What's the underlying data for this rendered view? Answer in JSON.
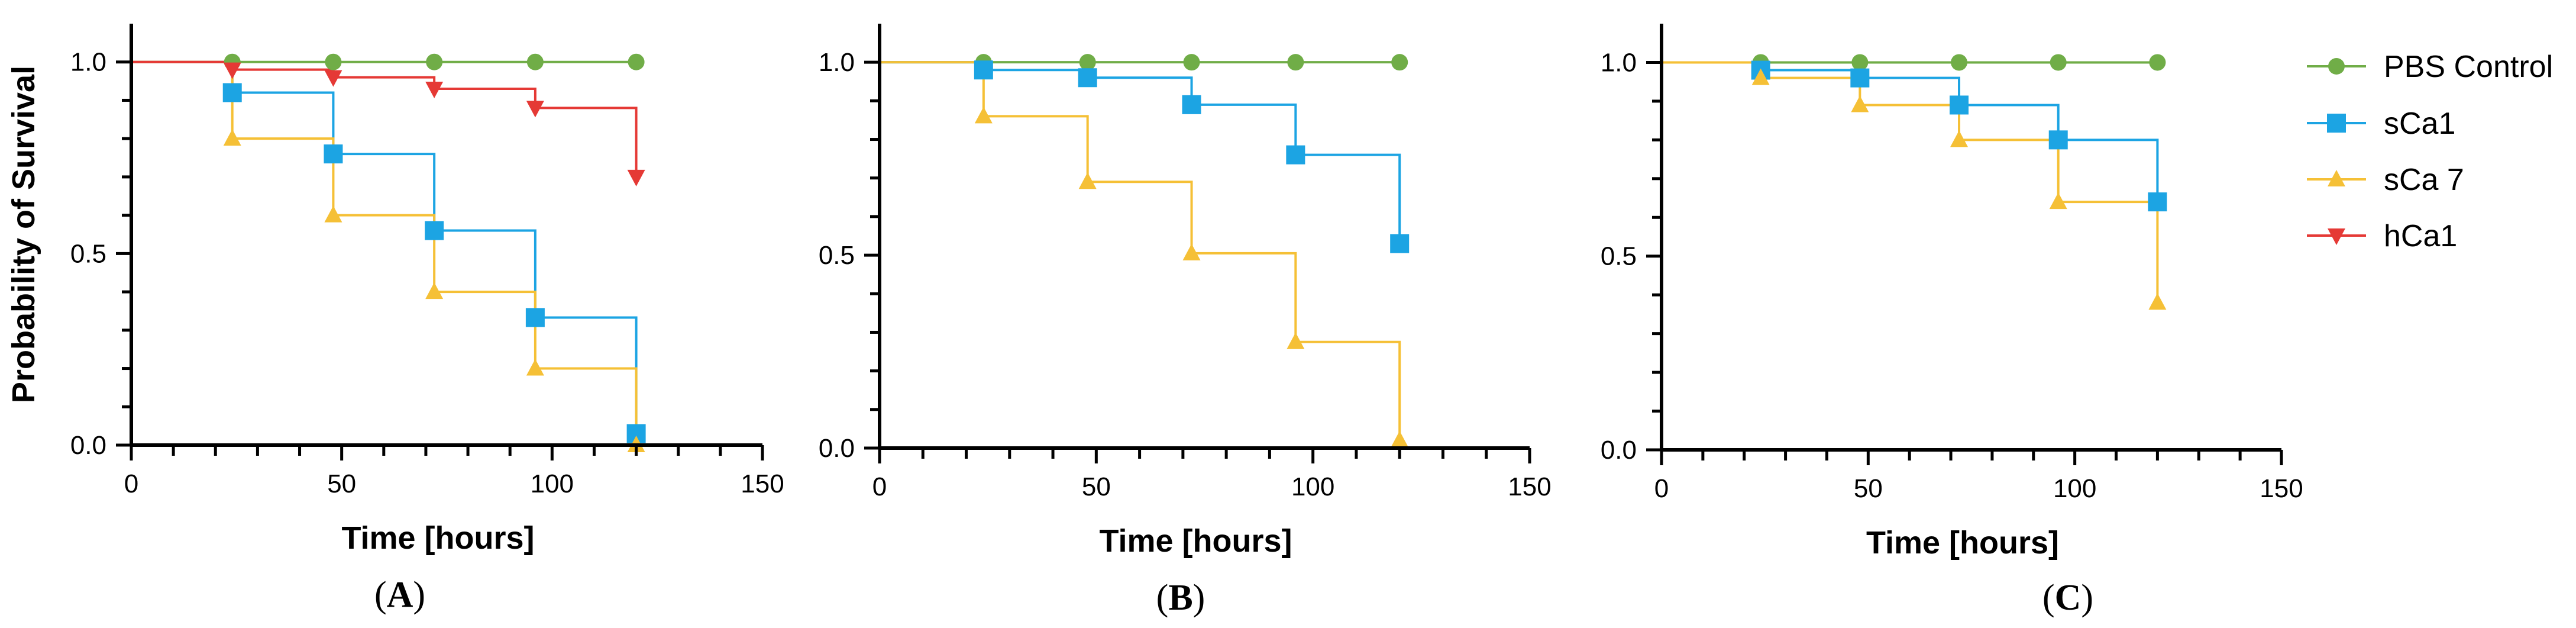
{
  "figure": {
    "legend": [
      {
        "key": "pbs",
        "label": "PBS Control",
        "color": "#70ad47",
        "marker": "circle"
      },
      {
        "key": "sca1",
        "label": "sCa1",
        "color": "#1ca4e3",
        "marker": "square"
      },
      {
        "key": "sca7",
        "label": "sCa 7",
        "color": "#f5c036",
        "marker": "triangle-up"
      },
      {
        "key": "hca1",
        "label": "hCa1",
        "color": "#e53935",
        "marker": "triangle-down"
      }
    ]
  },
  "chart_data": [
    {
      "panel": "A",
      "panel_label": {
        "open": "(",
        "letter": "A",
        "close": ")"
      },
      "type": "line",
      "style": "step (Kaplan-Meier survival)",
      "xlabel": "Time [hours]",
      "ylabel": "Probability of Survival",
      "xlim": [
        0,
        150
      ],
      "ylim": [
        0,
        1.1
      ],
      "xticks": [
        0,
        50,
        100,
        150
      ],
      "xtick_labels": [
        "0",
        "50",
        "100",
        "150"
      ],
      "yticks": [
        0,
        0.5,
        1
      ],
      "ytick_labels": [
        "0.0",
        "0.5",
        "1.0"
      ],
      "grid": false,
      "x": [
        0,
        24,
        48,
        72,
        96,
        120
      ],
      "series": [
        {
          "name": "PBS Control",
          "key": "pbs",
          "values": [
            1.0,
            1.0,
            1.0,
            1.0,
            1.0,
            1.0
          ]
        },
        {
          "name": "sCa1",
          "key": "sca1",
          "values": [
            1.0,
            0.92,
            0.76,
            0.56,
            0.333,
            0.03
          ]
        },
        {
          "name": "sCa 7",
          "key": "sca7",
          "values": [
            1.0,
            0.8,
            0.6,
            0.4,
            0.2,
            0.0
          ]
        },
        {
          "name": "hCa1",
          "key": "hca1",
          "values": [
            1.0,
            0.98,
            0.96,
            0.93,
            0.88,
            0.7
          ]
        }
      ]
    },
    {
      "panel": "B",
      "panel_label": {
        "open": "(",
        "letter": "B",
        "close": ")"
      },
      "type": "line",
      "style": "step (Kaplan-Meier survival)",
      "xlabel": "Time [hours]",
      "ylabel": "",
      "xlim": [
        0,
        150
      ],
      "ylim": [
        0,
        1.1
      ],
      "xticks": [
        0,
        50,
        100,
        150
      ],
      "xtick_labels": [
        "0",
        "50",
        "100",
        "150"
      ],
      "yticks": [
        0,
        0.5,
        1
      ],
      "ytick_labels": [
        "0.0",
        "0.5",
        "1.0"
      ],
      "grid": false,
      "x": [
        0,
        24,
        48,
        72,
        96,
        120
      ],
      "series": [
        {
          "name": "PBS Control",
          "key": "pbs",
          "values": [
            1.0,
            1.0,
            1.0,
            1.0,
            1.0,
            1.0
          ]
        },
        {
          "name": "sCa1",
          "key": "sca1",
          "values": [
            1.0,
            0.98,
            0.96,
            0.89,
            0.76,
            0.53
          ]
        },
        {
          "name": "sCa 7",
          "key": "sca7",
          "values": [
            1.0,
            0.86,
            0.69,
            0.505,
            0.275,
            0.02
          ]
        }
      ]
    },
    {
      "panel": "C",
      "panel_label": {
        "open": "(",
        "letter": "C",
        "close": ")"
      },
      "type": "line",
      "style": "step (Kaplan-Meier survival)",
      "xlabel": "Time [hours]",
      "ylabel": "",
      "xlim": [
        0,
        150
      ],
      "ylim": [
        0,
        1.1
      ],
      "xticks": [
        0,
        50,
        100,
        150
      ],
      "xtick_labels": [
        "0",
        "50",
        "100",
        "150"
      ],
      "yticks": [
        0,
        0.5,
        1
      ],
      "ytick_labels": [
        "0.0",
        "0.5",
        "1.0"
      ],
      "grid": false,
      "x": [
        0,
        24,
        48,
        72,
        96,
        120
      ],
      "series": [
        {
          "name": "PBS Control",
          "key": "pbs",
          "values": [
            1.0,
            1.0,
            1.0,
            1.0,
            1.0,
            1.0
          ]
        },
        {
          "name": "sCa1",
          "key": "sca1",
          "values": [
            1.0,
            0.98,
            0.96,
            0.89,
            0.8,
            0.64
          ]
        },
        {
          "name": "sCa 7",
          "key": "sca7",
          "values": [
            1.0,
            0.96,
            0.89,
            0.8,
            0.64,
            0.38
          ]
        }
      ]
    }
  ]
}
